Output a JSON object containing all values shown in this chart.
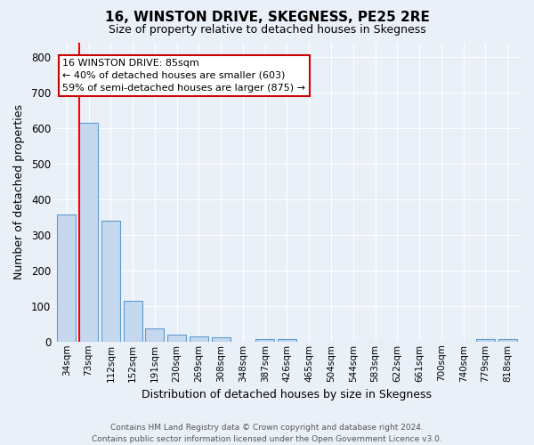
{
  "title": "16, WINSTON DRIVE, SKEGNESS, PE25 2RE",
  "subtitle": "Size of property relative to detached houses in Skegness",
  "xlabel": "Distribution of detached houses by size in Skegness",
  "ylabel": "Number of detached properties",
  "bar_labels": [
    "34sqm",
    "73sqm",
    "112sqm",
    "152sqm",
    "191sqm",
    "230sqm",
    "269sqm",
    "308sqm",
    "348sqm",
    "387sqm",
    "426sqm",
    "465sqm",
    "504sqm",
    "544sqm",
    "583sqm",
    "622sqm",
    "661sqm",
    "700sqm",
    "740sqm",
    "779sqm",
    "818sqm"
  ],
  "bar_values": [
    357,
    613,
    340,
    114,
    38,
    20,
    15,
    13,
    0,
    8,
    8,
    0,
    0,
    0,
    0,
    0,
    0,
    0,
    0,
    7,
    7
  ],
  "bar_color": "#c5d8ed",
  "bar_edge_color": "#5b9bd5",
  "background_color": "#eaf0f8",
  "grid_color": "#ffffff",
  "red_line_x": 1.0,
  "annotation_line1": "16 WINSTON DRIVE: 85sqm",
  "annotation_line2": "← 40% of detached houses are smaller (603)",
  "annotation_line3": "59% of semi-detached houses are larger (875) →",
  "annotation_box_color": "#ffffff",
  "annotation_box_edge": "#cc0000",
  "ylim": [
    0,
    840
  ],
  "yticks": [
    0,
    100,
    200,
    300,
    400,
    500,
    600,
    700,
    800
  ],
  "footer_line1": "Contains HM Land Registry data © Crown copyright and database right 2024.",
  "footer_line2": "Contains public sector information licensed under the Open Government Licence v3.0."
}
